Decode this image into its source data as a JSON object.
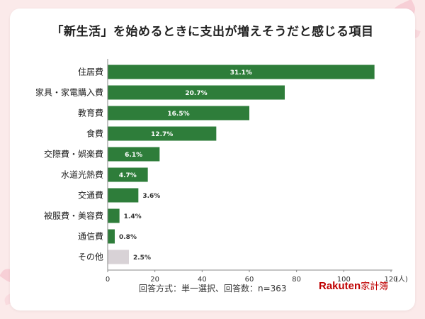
{
  "title": "「新生活」を始めるときに支出が増えそうだと感じる項目",
  "footer": "回答方式：単一選択、回答数：n=363",
  "logo": {
    "brand": "Rakuten",
    "product": "家計簿"
  },
  "colors": {
    "bar": "#2e7d3a",
    "other_bar": "#d8d2d6",
    "accent": "#bf0000"
  },
  "chart_data": {
    "type": "bar",
    "orientation": "horizontal",
    "categories": [
      "住居費",
      "家具・家電購入費",
      "教育費",
      "食費",
      "交際費・娯楽費",
      "水道光熱費",
      "交通費",
      "被服費・美容費",
      "通信費",
      "その他"
    ],
    "values": [
      113,
      75,
      60,
      46,
      22,
      17,
      13,
      5,
      3,
      9
    ],
    "data_labels": [
      "31.1%",
      "20.7%",
      "16.5%",
      "12.7%",
      "6.1%",
      "4.7%",
      "3.6%",
      "1.4%",
      "0.8%",
      "2.5%"
    ],
    "xlim": [
      0,
      120
    ],
    "x_ticks": [
      "0",
      "20",
      "40",
      "60",
      "80",
      "100",
      "120"
    ],
    "x_unit": "(人)",
    "grid": false
  }
}
